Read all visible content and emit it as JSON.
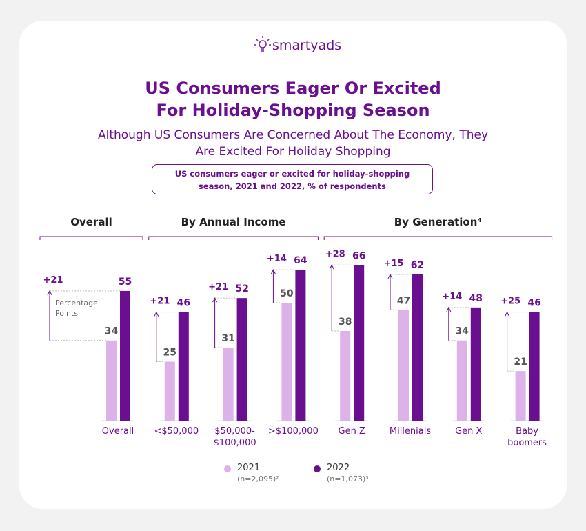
{
  "brand": "smartyads",
  "chart_data": {
    "type": "bar",
    "title": "US Consumers Eager Or Excited For Holiday-Shopping Season",
    "subtitle": "Although US Consumers Are Concerned About The Economy, They Are Excited For Holiday Shopping",
    "caption": "US consumers eager or excited for holiday-shopping season, 2021 and 2022, % of respondents",
    "groups": [
      {
        "label": "Overall",
        "categories": [
          "Overall"
        ]
      },
      {
        "label": "By Annual Income",
        "categories": [
          "<$50,000",
          "$50,000-\n$100,000",
          ">$100,000"
        ]
      },
      {
        "label": "By Generation⁴",
        "categories": [
          "Gen Z",
          "Millenials",
          "Gen X",
          "Baby\nboomers"
        ]
      }
    ],
    "categories": [
      "Overall",
      "<$50,000",
      "$50,000-\n$100,000",
      ">$100,000",
      "Gen Z",
      "Millenials",
      "Gen X",
      "Baby\nboomers"
    ],
    "series": [
      {
        "name": "2021",
        "note": "(n=2,095)²",
        "color": "#dcb2e8",
        "values": [
          34,
          25,
          31,
          50,
          38,
          47,
          34,
          21
        ]
      },
      {
        "name": "2022",
        "note": "(n=1,073)³",
        "color": "#6b0f91",
        "values": [
          55,
          46,
          52,
          64,
          66,
          62,
          48,
          46
        ]
      }
    ],
    "change": {
      "values": [
        21,
        21,
        21,
        14,
        28,
        15,
        14,
        25
      ],
      "value_labels": [
        "+21",
        "+21",
        "+21",
        "+14",
        "+28",
        "+15",
        "+14",
        "+25"
      ]
    },
    "annotation": "Percentage Points",
    "ylim": [
      0,
      70
    ]
  }
}
